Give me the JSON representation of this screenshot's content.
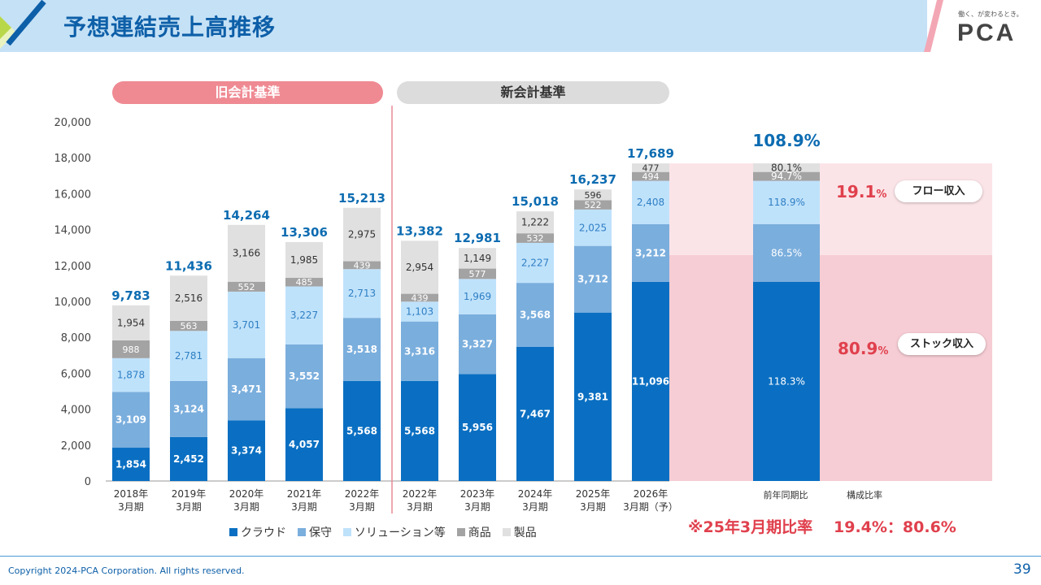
{
  "header": {
    "title": "予想連結売上高推移",
    "slogan": "働く、が変わるとき。",
    "logo": "PCA"
  },
  "sections": {
    "old": "旧会計基準",
    "new": "新会計基準"
  },
  "colors": {
    "cloud": "#0a6fc2",
    "maintenance": "#7aaedd",
    "solution": "#bfe2fb",
    "goods": "#a3a3a3",
    "product": "#e0e0e0",
    "accent": "#e0404d",
    "total": "#0d6cb1",
    "pill_old": "#ef8a93"
  },
  "chart_data": {
    "type": "bar",
    "stacked": true,
    "ylim": [
      0,
      20000
    ],
    "yticks": [
      "0",
      "2,000",
      "4,000",
      "6,000",
      "8,000",
      "10,000",
      "12,000",
      "14,000",
      "16,000",
      "18,000",
      "20,000"
    ],
    "categories": [
      [
        "2018年",
        "3月期"
      ],
      [
        "2019年",
        "3月期"
      ],
      [
        "2020年",
        "3月期"
      ],
      [
        "2021年",
        "3月期"
      ],
      [
        "2022年",
        "3月期"
      ],
      [
        "2022年",
        "3月期"
      ],
      [
        "2023年",
        "3月期"
      ],
      [
        "2024年",
        "3月期"
      ],
      [
        "2025年",
        "3月期"
      ],
      [
        "2026年",
        "3月期（予）"
      ]
    ],
    "series": [
      {
        "name": "クラウド",
        "values": [
          1854,
          2452,
          3374,
          4057,
          5568,
          5568,
          5956,
          7467,
          9381,
          11096
        ],
        "labels": [
          "1,854",
          "2,452",
          "3,374",
          "4,057",
          "5,568",
          "5,568",
          "5,956",
          "7,467",
          "9,381",
          "11,096"
        ]
      },
      {
        "name": "保守",
        "values": [
          3109,
          3124,
          3471,
          3552,
          3518,
          3316,
          3327,
          3568,
          3712,
          3212
        ],
        "labels": [
          "3,109",
          "3,124",
          "3,471",
          "3,552",
          "3,518",
          "3,316",
          "3,327",
          "3,568",
          "3,712",
          "3,212"
        ]
      },
      {
        "name": "ソリューション等",
        "values": [
          1878,
          2781,
          3701,
          3227,
          2713,
          1103,
          1969,
          2227,
          2025,
          2408
        ],
        "labels": [
          "1,878",
          "2,781",
          "3,701",
          "3,227",
          "2,713",
          "1,103",
          "1,969",
          "2,227",
          "2,025",
          "2,408"
        ]
      },
      {
        "name": "商品",
        "values": [
          988,
          563,
          552,
          485,
          439,
          439,
          577,
          532,
          522,
          494
        ],
        "labels": [
          "988",
          "563",
          "552",
          "485",
          "439",
          "439",
          "577",
          "532",
          "522",
          "494"
        ]
      },
      {
        "name": "製品",
        "values": [
          1954,
          2516,
          3166,
          1985,
          2975,
          2954,
          1149,
          1222,
          596,
          477
        ],
        "labels": [
          "1,954",
          "2,516",
          "3,166",
          "1,985",
          "2,975",
          "2,954",
          "1,149",
          "1,222",
          "596",
          "477"
        ]
      }
    ],
    "totals": [
      "9,783",
      "11,436",
      "14,264",
      "13,306",
      "15,213",
      "13,382",
      "12,981",
      "15,018",
      "16,237",
      "17,689"
    ],
    "summary_bar": {
      "title": "108.9%",
      "label": "前年同期比",
      "segment_labels": [
        "118.3%",
        "86.5%",
        "118.9%",
        "94.7%",
        "80.1%"
      ]
    },
    "composition": {
      "label": "構成比率",
      "flow_pct": "19.1",
      "flow_label": "フロー収入",
      "stock_pct": "80.9",
      "stock_label": "ストック収入",
      "pct_unit": "%"
    }
  },
  "note": {
    "text": "※25年3月期比率",
    "ratio": "19.4%：80.6%"
  },
  "footer": {
    "copyright": "Copyright 2024-PCA Corporation. All rights reserved.",
    "page": "39"
  }
}
